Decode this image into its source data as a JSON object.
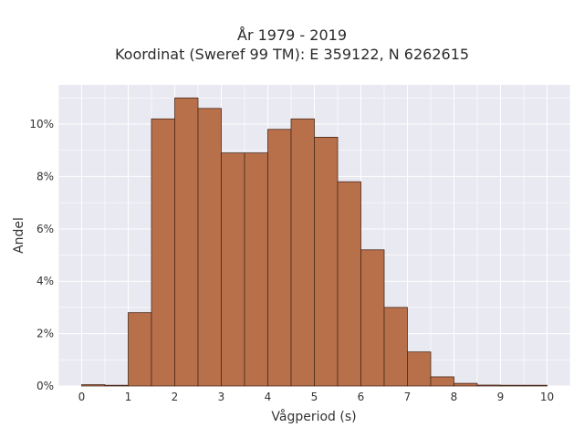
{
  "chart_data": {
    "type": "bar",
    "title_lines": [
      "År 1979 - 2019",
      "Koordinat (Sweref 99 TM): E 359122, N 6262615"
    ],
    "xlabel": "Vågperiod (s)",
    "ylabel": "Andel",
    "xlim": [
      -0.5,
      10.5
    ],
    "ylim": [
      0,
      11.5
    ],
    "x_ticks": [
      0,
      1,
      2,
      3,
      4,
      5,
      6,
      7,
      8,
      9,
      10
    ],
    "x_tick_labels": [
      "0",
      "1",
      "2",
      "3",
      "4",
      "5",
      "6",
      "7",
      "8",
      "9",
      "10"
    ],
    "y_ticks": [
      0,
      2,
      4,
      6,
      8,
      10
    ],
    "y_tick_labels": [
      "0%",
      "2%",
      "4%",
      "6%",
      "8%",
      "10%"
    ],
    "bin_width": 0.5,
    "bins": [
      {
        "start": 0.0,
        "end": 0.5,
        "value": 0.05
      },
      {
        "start": 0.5,
        "end": 1.0,
        "value": 0.0
      },
      {
        "start": 1.0,
        "end": 1.5,
        "value": 2.8
      },
      {
        "start": 1.5,
        "end": 2.0,
        "value": 10.2
      },
      {
        "start": 2.0,
        "end": 2.5,
        "value": 11.0
      },
      {
        "start": 2.5,
        "end": 3.0,
        "value": 10.6
      },
      {
        "start": 3.0,
        "end": 3.5,
        "value": 8.9
      },
      {
        "start": 3.5,
        "end": 4.0,
        "value": 8.9
      },
      {
        "start": 4.0,
        "end": 4.5,
        "value": 9.8
      },
      {
        "start": 4.5,
        "end": 5.0,
        "value": 10.2
      },
      {
        "start": 5.0,
        "end": 5.5,
        "value": 9.5
      },
      {
        "start": 5.5,
        "end": 6.0,
        "value": 7.8
      },
      {
        "start": 6.0,
        "end": 6.5,
        "value": 5.2
      },
      {
        "start": 6.5,
        "end": 7.0,
        "value": 3.0
      },
      {
        "start": 7.0,
        "end": 7.5,
        "value": 1.3
      },
      {
        "start": 7.5,
        "end": 8.0,
        "value": 0.35
      },
      {
        "start": 8.0,
        "end": 8.5,
        "value": 0.1
      },
      {
        "start": 8.5,
        "end": 9.0,
        "value": 0.03
      },
      {
        "start": 9.0,
        "end": 9.5,
        "value": 0.0
      },
      {
        "start": 9.5,
        "end": 10.0,
        "value": 0.0
      }
    ],
    "grid": true,
    "legend": false,
    "colors": {
      "bar_fill": "#b8704b",
      "bar_edge": "#4a2a1a",
      "plot_background": "#e9e9f1",
      "grid": "#ffffff"
    }
  }
}
